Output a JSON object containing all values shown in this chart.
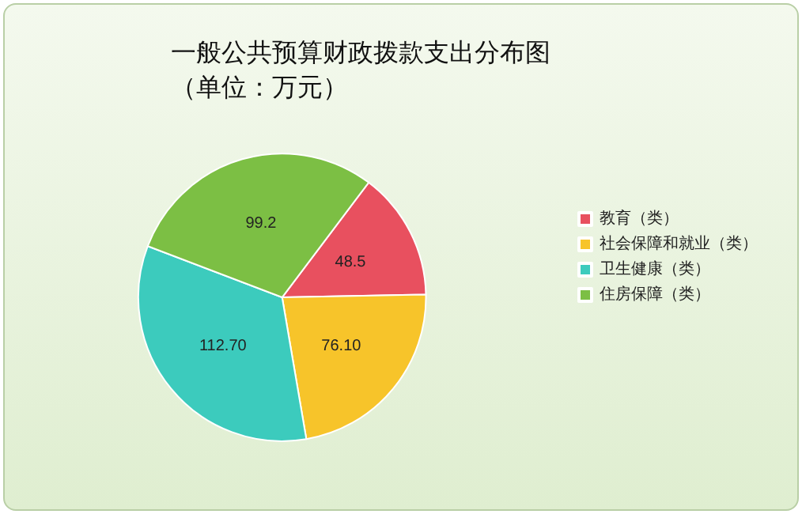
{
  "chart_data": {
    "type": "pie",
    "title": "一般公共预算财政拨款支出分布图",
    "subtitle": "（单位：万元）",
    "categories": [
      "教育（类）",
      "社会保障和就业（类）",
      "卫生健康（类）",
      "住房保障（类）"
    ],
    "values": [
      48.5,
      76.1,
      112.7,
      99.2
    ],
    "value_labels": [
      "48.5",
      "76.10",
      "112.70",
      "99.2"
    ],
    "colors": [
      "#e8505f",
      "#f7c42a",
      "#3ccbbd",
      "#7cbf44"
    ],
    "legend": "right"
  }
}
